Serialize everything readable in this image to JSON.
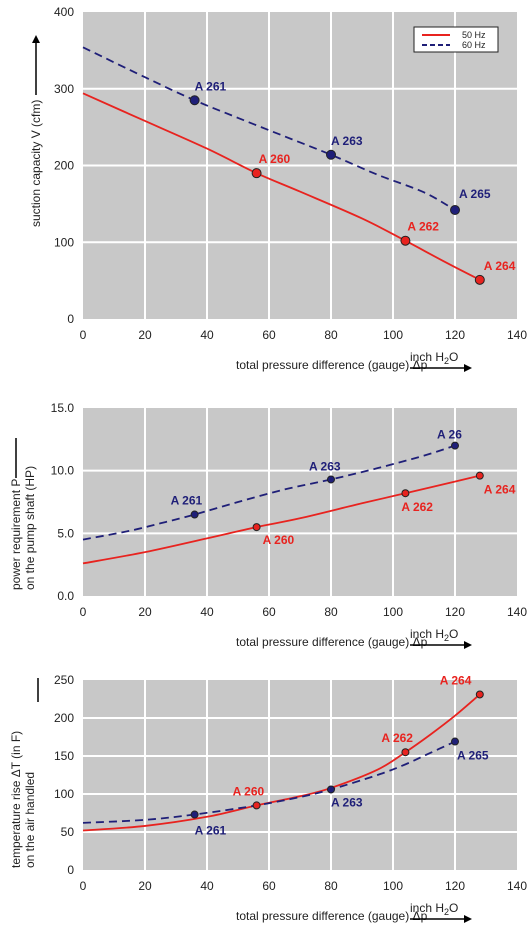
{
  "colors": {
    "red": "#e8231f",
    "blue": "#1f1f78",
    "plot_bg": "#c8c8c8",
    "grid": "#ffffff"
  },
  "chart_data": [
    {
      "type": "line",
      "xlabel": "total pressure difference (gauge) Δp",
      "x_unit": "inch H2O",
      "ylabel": "suction capacity V (cfm)",
      "xlim": [
        0,
        140
      ],
      "ylim": [
        0,
        400
      ],
      "xticks": [
        "0",
        "20",
        "40",
        "60",
        "80",
        "100",
        "120",
        "140"
      ],
      "yticks": [
        "0",
        "100",
        "200",
        "300",
        "400"
      ],
      "grid": true,
      "legend": {
        "position": "top-right",
        "entries": [
          "50 Hz",
          "60 Hz"
        ]
      },
      "series": [
        {
          "name": "50 Hz",
          "color": "#e8231f",
          "style": "solid",
          "x": [
            0,
            20,
            40,
            56,
            70,
            90,
            104,
            116,
            128
          ],
          "y": [
            294,
            258,
            222,
            190,
            166,
            131,
            102,
            76,
            51
          ]
        },
        {
          "name": "60 Hz",
          "color": "#1f1f78",
          "style": "dashed",
          "x": [
            0,
            20,
            36,
            50,
            65,
            80,
            95,
            110,
            120
          ],
          "y": [
            354,
            315,
            285,
            262,
            238,
            214,
            188,
            165,
            142
          ]
        }
      ],
      "points": [
        {
          "label": "A 261",
          "x": 36,
          "y": 285,
          "series": "60 Hz"
        },
        {
          "label": "A 263",
          "x": 80,
          "y": 214,
          "series": "60 Hz"
        },
        {
          "label": "A 265",
          "x": 120,
          "y": 142,
          "series": "60 Hz"
        },
        {
          "label": "A 260",
          "x": 56,
          "y": 190,
          "series": "50 Hz"
        },
        {
          "label": "A 262",
          "x": 104,
          "y": 102,
          "series": "50 Hz"
        },
        {
          "label": "A 264",
          "x": 128,
          "y": 51,
          "series": "50 Hz"
        }
      ]
    },
    {
      "type": "line",
      "xlabel": "total pressure difference (gauge) Δp",
      "x_unit": "inch H2O",
      "ylabel_lines": [
        "power requirement P",
        "on the pump shaft (HP)"
      ],
      "xlim": [
        0,
        140
      ],
      "ylim": [
        0,
        15
      ],
      "xticks": [
        "0",
        "20",
        "40",
        "60",
        "80",
        "100",
        "120",
        "140"
      ],
      "yticks": [
        "0.0",
        "5.0",
        "10.0",
        "15.0"
      ],
      "grid": true,
      "series": [
        {
          "name": "50 Hz",
          "color": "#e8231f",
          "style": "solid",
          "x": [
            0,
            20,
            40,
            56,
            70,
            90,
            104,
            116,
            128
          ],
          "y": [
            2.6,
            3.5,
            4.6,
            5.5,
            6.2,
            7.4,
            8.2,
            8.9,
            9.6
          ]
        },
        {
          "name": "60 Hz",
          "color": "#1f1f78",
          "style": "dashed",
          "x": [
            0,
            15,
            25,
            36,
            50,
            65,
            80,
            95,
            110,
            120
          ],
          "y": [
            4.5,
            5.2,
            5.8,
            6.5,
            7.5,
            8.5,
            9.3,
            10.2,
            11.2,
            12.0
          ]
        }
      ],
      "points": [
        {
          "label": "A 261",
          "x": 36,
          "y": 6.5,
          "series": "60 Hz"
        },
        {
          "label": "A 263",
          "x": 80,
          "y": 9.3,
          "series": "60 Hz"
        },
        {
          "label": "A 26",
          "x": 120,
          "y": 12.0,
          "series": "60 Hz"
        },
        {
          "label": "A 260",
          "x": 56,
          "y": 5.5,
          "series": "50 Hz"
        },
        {
          "label": "A 262",
          "x": 104,
          "y": 8.2,
          "series": "50 Hz"
        },
        {
          "label": "A 264",
          "x": 128,
          "y": 9.6,
          "series": "50 Hz"
        }
      ]
    },
    {
      "type": "line",
      "xlabel": "total pressure difference (gauge) Δp",
      "x_unit": "inch H2O",
      "ylabel_lines": [
        "temperature rise ΔT (in F)",
        "on the air handled"
      ],
      "xlim": [
        0,
        140
      ],
      "ylim": [
        0,
        250
      ],
      "xticks": [
        "0",
        "20",
        "40",
        "60",
        "80",
        "100",
        "120",
        "140"
      ],
      "yticks": [
        "0",
        "50",
        "100",
        "150",
        "200",
        "250"
      ],
      "grid": true,
      "series": [
        {
          "name": "50 Hz",
          "color": "#e8231f",
          "style": "solid",
          "x": [
            0,
            20,
            40,
            56,
            70,
            80,
            95,
            104,
            112,
            120,
            128
          ],
          "y": [
            52,
            58,
            70,
            85,
            97,
            108,
            132,
            155,
            178,
            203,
            231
          ]
        },
        {
          "name": "60 Hz",
          "color": "#1f1f78",
          "style": "dashed",
          "x": [
            0,
            20,
            36,
            56,
            70,
            80,
            95,
            104,
            112,
            120
          ],
          "y": [
            62,
            66,
            73,
            85,
            96,
            106,
            125,
            139,
            154,
            169
          ]
        }
      ],
      "points": [
        {
          "label": "A 261",
          "x": 36,
          "y": 73,
          "series": "60 Hz"
        },
        {
          "label": "A 263",
          "x": 80,
          "y": 106,
          "series": "60 Hz"
        },
        {
          "label": "A 265",
          "x": 120,
          "y": 169,
          "series": "60 Hz"
        },
        {
          "label": "A 260",
          "x": 56,
          "y": 85,
          "series": "50 Hz"
        },
        {
          "label": "A 262",
          "x": 104,
          "y": 155,
          "series": "50 Hz"
        },
        {
          "label": "A 264",
          "x": 128,
          "y": 231,
          "series": "50 Hz"
        }
      ]
    }
  ]
}
